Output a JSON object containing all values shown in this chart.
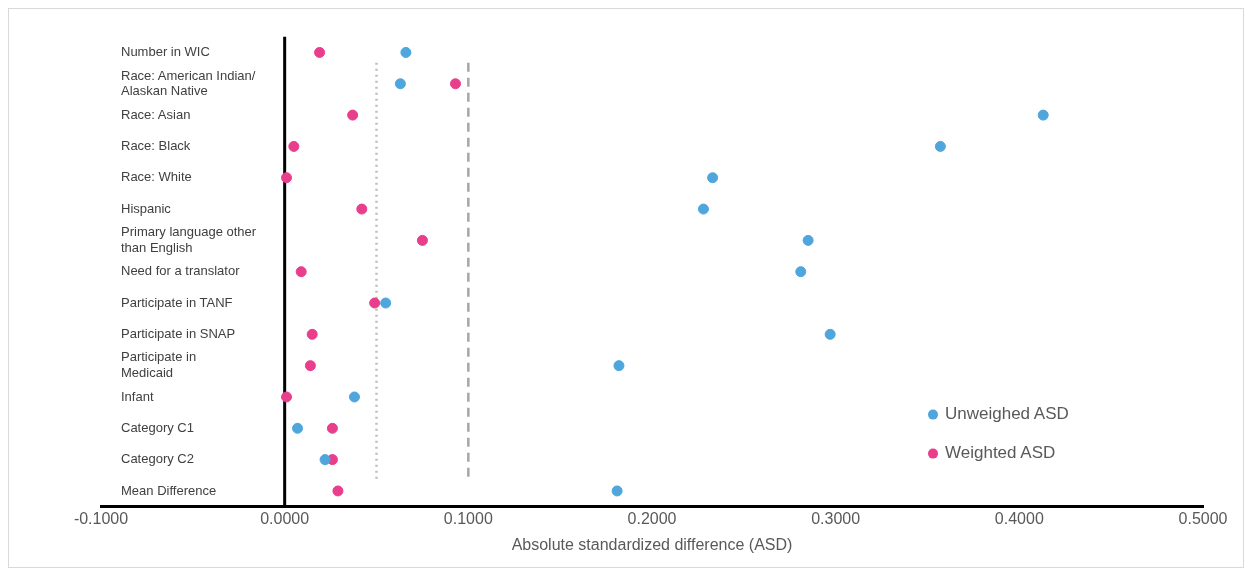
{
  "chart_data": {
    "type": "scatter",
    "xlabel": "Absolute standardized difference (ASD)",
    "categories": [
      "Number in WIC",
      "Race: American Indian/ Alaskan Native",
      "Race: Asian",
      "Race: Black",
      "Race: White",
      "Hispanic",
      "Primary language other than English",
      "Need for a translator",
      "Participate in TANF",
      "Participate in SNAP",
      "Participate in Medicaid",
      "Infant",
      "Category C1",
      "Category C2",
      "Mean Difference"
    ],
    "series": [
      {
        "name": "Unweighed ASD",
        "color": "#4ea6dc",
        "values": [
          0.066,
          0.063,
          0.413,
          0.357,
          0.233,
          0.228,
          0.285,
          0.281,
          0.055,
          0.297,
          0.182,
          0.038,
          0.007,
          0.022,
          0.181
        ]
      },
      {
        "name": "Weighted ASD",
        "color": "#e83e8c",
        "values": [
          0.019,
          0.093,
          0.037,
          0.005,
          0.001,
          0.042,
          0.075,
          0.009,
          0.049,
          0.015,
          0.014,
          0.001,
          0.026,
          0.026,
          0.029
        ]
      }
    ],
    "xlim": [
      -0.1,
      0.5
    ],
    "xticks": [
      {
        "value": -0.1,
        "label": "-0.1000"
      },
      {
        "value": 0,
        "label": "0.0000"
      },
      {
        "value": 0.1,
        "label": "0.1000"
      },
      {
        "value": 0.2,
        "label": "0.2000"
      },
      {
        "value": 0.3,
        "label": "0.3000"
      },
      {
        "value": 0.4,
        "label": "0.4000"
      },
      {
        "value": 0.5,
        "label": "0.5000"
      }
    ],
    "ref_lines": [
      {
        "axis": "x",
        "value": 0.05,
        "color": "#bfbfbf",
        "line_style": "dotted"
      },
      {
        "axis": "x",
        "value": 0.1,
        "color": "#a6a6a6",
        "line_style": "dashed"
      }
    ],
    "orientation": "horizontal",
    "marker": "circle",
    "legend": "bottom right",
    "grid": false
  }
}
